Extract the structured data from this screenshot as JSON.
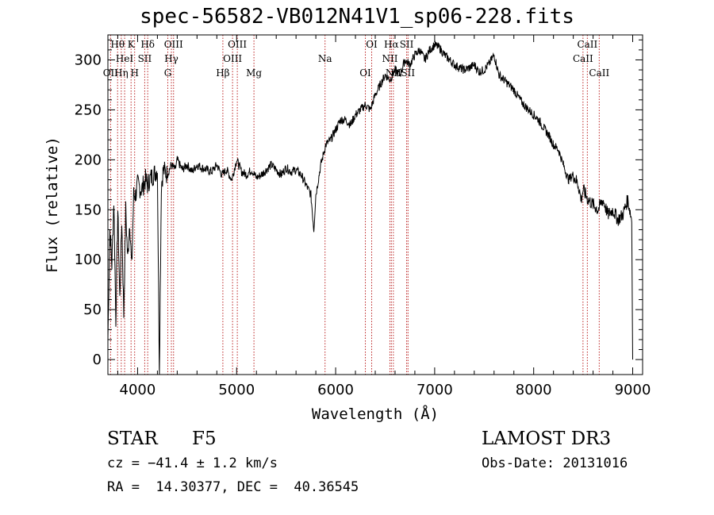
{
  "chart_data": {
    "type": "line",
    "title": "spec-56582-VB012N41V1_sp06-228.fits",
    "xlabel": "Wavelength (Å)",
    "ylabel": "Flux (relative)",
    "xlim": [
      3700,
      9100
    ],
    "ylim": [
      -15,
      325
    ],
    "x_ticks": [
      4000,
      5000,
      6000,
      7000,
      8000,
      9000
    ],
    "y_ticks": [
      0,
      50,
      100,
      150,
      200,
      250,
      300
    ],
    "x_tick_labels": [
      "4000",
      "5000",
      "6000",
      "7000",
      "8000",
      "9000"
    ],
    "y_tick_labels": [
      "0",
      "50",
      "100",
      "150",
      "200",
      "250",
      "300"
    ],
    "grid": false,
    "series": [
      {
        "x": [
          3700,
          3720,
          3740,
          3760,
          3780,
          3800,
          3820,
          3840,
          3860,
          3880,
          3900,
          3920,
          3940,
          3960,
          3980,
          4000,
          4040,
          4080,
          4100,
          4120,
          4160,
          4200,
          4220,
          4240,
          4260,
          4300,
          4340,
          4380,
          4400,
          4450,
          4500,
          4550,
          4600,
          4650,
          4700,
          4750,
          4800,
          4850,
          4900,
          4950,
          5000,
          5050,
          5100,
          5150,
          5200,
          5250,
          5300,
          5350,
          5400,
          5450,
          5500,
          5550,
          5600,
          5650,
          5700,
          5750,
          5780,
          5800,
          5850,
          5900,
          5950,
          6000,
          6050,
          6100,
          6150,
          6200,
          6250,
          6300,
          6350,
          6400,
          6450,
          6500,
          6550,
          6600,
          6650,
          6700,
          6750,
          6800,
          6850,
          6900,
          6950,
          7000,
          7050,
          7100,
          7150,
          7200,
          7250,
          7300,
          7350,
          7400,
          7450,
          7500,
          7550,
          7600,
          7650,
          7700,
          7750,
          7800,
          7850,
          7900,
          7950,
          8000,
          8050,
          8100,
          8150,
          8200,
          8250,
          8300,
          8350,
          8400,
          8450,
          8480,
          8500,
          8550,
          8600,
          8650,
          8700,
          8750,
          8800,
          8850,
          8900,
          8950,
          8990,
          9000
        ],
        "y": [
          20,
          130,
          95,
          160,
          40,
          150,
          60,
          140,
          45,
          150,
          100,
          140,
          90,
          165,
          165,
          175,
          170,
          180,
          175,
          180,
          185,
          190,
          -10,
          175,
          190,
          185,
          195,
          190,
          200,
          190,
          195,
          188,
          195,
          192,
          190,
          188,
          195,
          185,
          190,
          180,
          200,
          188,
          185,
          190,
          182,
          185,
          190,
          195,
          190,
          185,
          192,
          188,
          190,
          185,
          175,
          165,
          130,
          165,
          195,
          215,
          220,
          230,
          240,
          240,
          235,
          245,
          250,
          255,
          250,
          265,
          275,
          285,
          280,
          290,
          285,
          300,
          295,
          305,
          310,
          300,
          310,
          315,
          312,
          305,
          300,
          295,
          292,
          290,
          292,
          295,
          288,
          290,
          296,
          305,
          285,
          280,
          275,
          270,
          262,
          255,
          250,
          245,
          240,
          232,
          225,
          215,
          210,
          195,
          180,
          185,
          175,
          160,
          170,
          160,
          155,
          150,
          160,
          145,
          150,
          140,
          145,
          160,
          140,
          0
        ]
      }
    ],
    "line_markers": [
      {
        "wl": 3727,
        "label": "OII",
        "row": 3
      },
      {
        "wl": 3798,
        "label": "Hθ",
        "row": 1
      },
      {
        "wl": 3835,
        "label": "Hη",
        "row": 3
      },
      {
        "wl": 3869,
        "label": "HeI",
        "row": 2
      },
      {
        "wl": 3934,
        "label": "K",
        "row": 1
      },
      {
        "wl": 3970,
        "label": "H",
        "row": 3
      },
      {
        "wl": 4072,
        "label": "SII",
        "row": 2
      },
      {
        "wl": 4102,
        "label": "Hδ",
        "row": 1
      },
      {
        "wl": 4305,
        "label": "G",
        "row": 3
      },
      {
        "wl": 4341,
        "label": "Hγ",
        "row": 2
      },
      {
        "wl": 4363,
        "label": "OIII",
        "row": 1
      },
      {
        "wl": 4861,
        "label": "Hβ",
        "row": 3
      },
      {
        "wl": 4959,
        "label": "OIII",
        "row": 2
      },
      {
        "wl": 5007,
        "label": "OIII",
        "row": 1
      },
      {
        "wl": 5175,
        "label": "Mg",
        "row": 3
      },
      {
        "wl": 5893,
        "label": "Na",
        "row": 2
      },
      {
        "wl": 6300,
        "label": "OI",
        "row": 3
      },
      {
        "wl": 6364,
        "label": "OI",
        "row": 1
      },
      {
        "wl": 6548,
        "label": "NII",
        "row": 2
      },
      {
        "wl": 6563,
        "label": "Hα",
        "row": 1
      },
      {
        "wl": 6583,
        "label": "NII",
        "row": 3
      },
      {
        "wl": 6717,
        "label": "SII",
        "row": 1
      },
      {
        "wl": 6731,
        "label": "SII",
        "row": 3
      },
      {
        "wl": 8498,
        "label": "CaII",
        "row": 2
      },
      {
        "wl": 8542,
        "label": "CaII",
        "row": 1
      },
      {
        "wl": 8662,
        "label": "CaII",
        "row": 3
      }
    ]
  },
  "footer": {
    "object_class": "STAR",
    "subclass": "F5",
    "redshift": "cz = −41.4 ± 1.2 km/s",
    "coords": "RA =  14.30377, DEC =  40.36545",
    "survey": "LAMOST DR3",
    "obs_date": "Obs-Date: 20131016"
  }
}
